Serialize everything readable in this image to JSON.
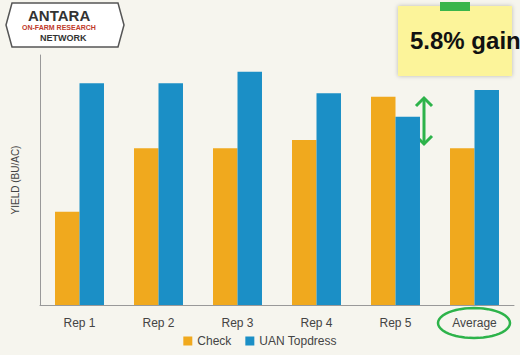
{
  "chart_data": {
    "type": "bar",
    "y_label": "YIELD (BU/AC)",
    "categories": [
      "Rep 1",
      "Rep 2",
      "Rep 3",
      "Rep 4",
      "Rep 5",
      "Average"
    ],
    "series": [
      {
        "name": "Check",
        "color": "#f0a91e",
        "values": [
          57.6,
          61.4,
          61.4,
          61.9,
          64.5,
          61.4
        ]
      },
      {
        "name": "UAN Topdress",
        "color": "#1b8fc6",
        "values": [
          65.3,
          65.3,
          66.0,
          64.7,
          63.3,
          64.9
        ]
      }
    ],
    "ylim": [
      52,
      67
    ],
    "tick_labels": "x",
    "grid": false,
    "legend": "bottom",
    "annotations": [
      "ANTARA",
      "ON-FARM RESEARCH",
      "NETWORK",
      "5.8% gain"
    ]
  }
}
